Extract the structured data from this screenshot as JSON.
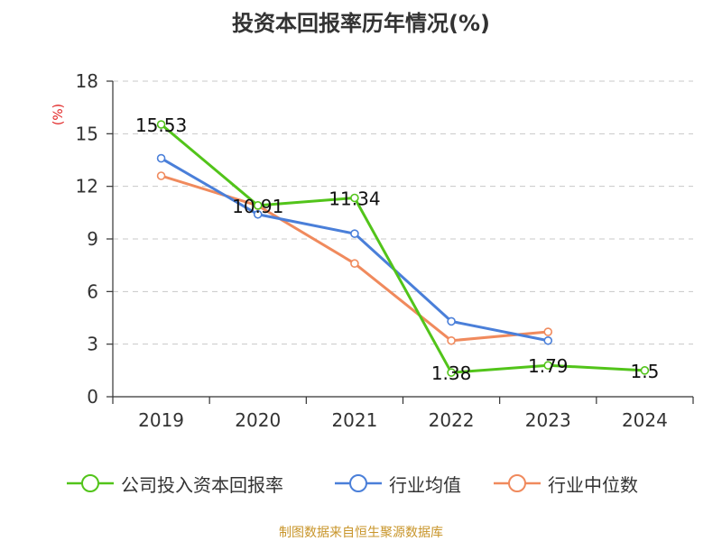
{
  "chart_data": {
    "type": "line",
    "title": "投资本回报率历年情况(%)",
    "ylabel": "(%)",
    "xlabel": "",
    "categories": [
      "2019",
      "2020",
      "2021",
      "2022",
      "2023",
      "2024"
    ],
    "ylim": [
      0,
      18
    ],
    "yticks": [
      0,
      3,
      6,
      9,
      12,
      15,
      18
    ],
    "grid": true,
    "legend_position": "bottom",
    "series": [
      {
        "name": "公司投入资本回报率",
        "color": "#52c41a",
        "values": [
          15.53,
          10.91,
          11.34,
          1.38,
          1.79,
          1.5
        ],
        "labels": [
          "15.53",
          "10.91",
          "11.34",
          "1.38",
          "1.79",
          "1.5"
        ]
      },
      {
        "name": "行业均值",
        "color": "#4a7fd9",
        "values": [
          13.6,
          10.4,
          9.3,
          4.3,
          3.2,
          null
        ]
      },
      {
        "name": "行业中位数",
        "color": "#f08a5d",
        "values": [
          12.6,
          10.9,
          7.6,
          3.2,
          3.7,
          null
        ]
      }
    ]
  },
  "source": "制图数据来自恒生聚源数据库"
}
